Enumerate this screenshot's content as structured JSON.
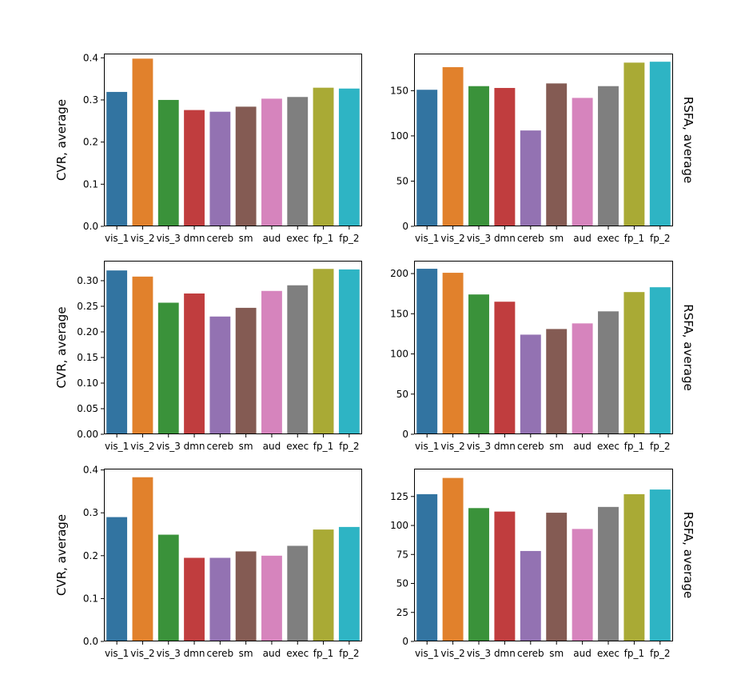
{
  "palette": [
    "#3274a1",
    "#e1812c",
    "#3a923a",
    "#c03d3e",
    "#9372b2",
    "#845b53",
    "#d684bd",
    "#7f7f7f",
    "#a9aa35",
    "#2eb4c4"
  ],
  "chart_data": [
    {
      "type": "bar",
      "categories": [
        "vis_1",
        "vis_2",
        "vis_3",
        "dmn",
        "cereb",
        "sm",
        "aud",
        "exec",
        "fp_1",
        "fp_2"
      ],
      "values": [
        0.319,
        0.398,
        0.3,
        0.276,
        0.272,
        0.284,
        0.303,
        0.307,
        0.329,
        0.327
      ],
      "ylabel": "CVR, average",
      "ylabel_side": "left",
      "ylim": [
        0,
        0.41
      ],
      "yticks": [
        0,
        0.1,
        0.2,
        0.3,
        0.4
      ],
      "ytick_labels": [
        "0.0",
        "0.1",
        "0.2",
        "0.3",
        "0.4"
      ]
    },
    {
      "type": "bar",
      "categories": [
        "vis_1",
        "vis_2",
        "vis_3",
        "dmn",
        "cereb",
        "sm",
        "aud",
        "exec",
        "fp_1",
        "fp_2"
      ],
      "values": [
        151,
        176,
        155,
        153,
        106,
        158,
        142,
        155,
        181,
        182
      ],
      "ylabel": "RSFA, average",
      "ylabel_side": "right",
      "ylim": [
        0,
        191
      ],
      "yticks": [
        0,
        50,
        100,
        150
      ],
      "ytick_labels": [
        "0",
        "50",
        "100",
        "150"
      ]
    },
    {
      "type": "bar",
      "categories": [
        "vis_1",
        "vis_2",
        "vis_3",
        "dmn",
        "cereb",
        "sm",
        "aud",
        "exec",
        "fp_1",
        "fp_2"
      ],
      "values": [
        0.32,
        0.308,
        0.257,
        0.275,
        0.23,
        0.247,
        0.28,
        0.291,
        0.323,
        0.322
      ],
      "ylabel": "CVR, average",
      "ylabel_side": "left",
      "ylim": [
        0,
        0.339
      ],
      "yticks": [
        0,
        0.05,
        0.1,
        0.15,
        0.2,
        0.25,
        0.3
      ],
      "ytick_labels": [
        "0.00",
        "0.05",
        "0.10",
        "0.15",
        "0.20",
        "0.25",
        "0.30"
      ]
    },
    {
      "type": "bar",
      "categories": [
        "vis_1",
        "vis_2",
        "vis_3",
        "dmn",
        "cereb",
        "sm",
        "aud",
        "exec",
        "fp_1",
        "fp_2"
      ],
      "values": [
        206,
        201,
        174,
        165,
        124,
        131,
        138,
        153,
        177,
        183
      ],
      "ylabel": "RSFA, average",
      "ylabel_side": "right",
      "ylim": [
        0,
        216
      ],
      "yticks": [
        0,
        50,
        100,
        150,
        200
      ],
      "ytick_labels": [
        "0",
        "50",
        "100",
        "150",
        "200"
      ]
    },
    {
      "type": "bar",
      "categories": [
        "vis_1",
        "vis_2",
        "vis_3",
        "dmn",
        "cereb",
        "sm",
        "aud",
        "exec",
        "fp_1",
        "fp_2"
      ],
      "values": [
        0.29,
        0.383,
        0.249,
        0.195,
        0.195,
        0.21,
        0.2,
        0.223,
        0.261,
        0.267
      ],
      "ylabel": "CVR, average",
      "ylabel_side": "left",
      "ylim": [
        0,
        0.403
      ],
      "yticks": [
        0,
        0.1,
        0.2,
        0.3,
        0.4
      ],
      "ytick_labels": [
        "0.0",
        "0.1",
        "0.2",
        "0.3",
        "0.4"
      ]
    },
    {
      "type": "bar",
      "categories": [
        "vis_1",
        "vis_2",
        "vis_3",
        "dmn",
        "cereb",
        "sm",
        "aud",
        "exec",
        "fp_1",
        "fp_2"
      ],
      "values": [
        127,
        141,
        115,
        112,
        78,
        111,
        97,
        116,
        127,
        131
      ],
      "ylabel": "RSFA, average",
      "ylabel_side": "right",
      "ylim": [
        0,
        149
      ],
      "yticks": [
        0,
        25,
        50,
        75,
        100,
        125
      ],
      "ytick_labels": [
        "0",
        "25",
        "50",
        "75",
        "100",
        "125"
      ]
    }
  ]
}
